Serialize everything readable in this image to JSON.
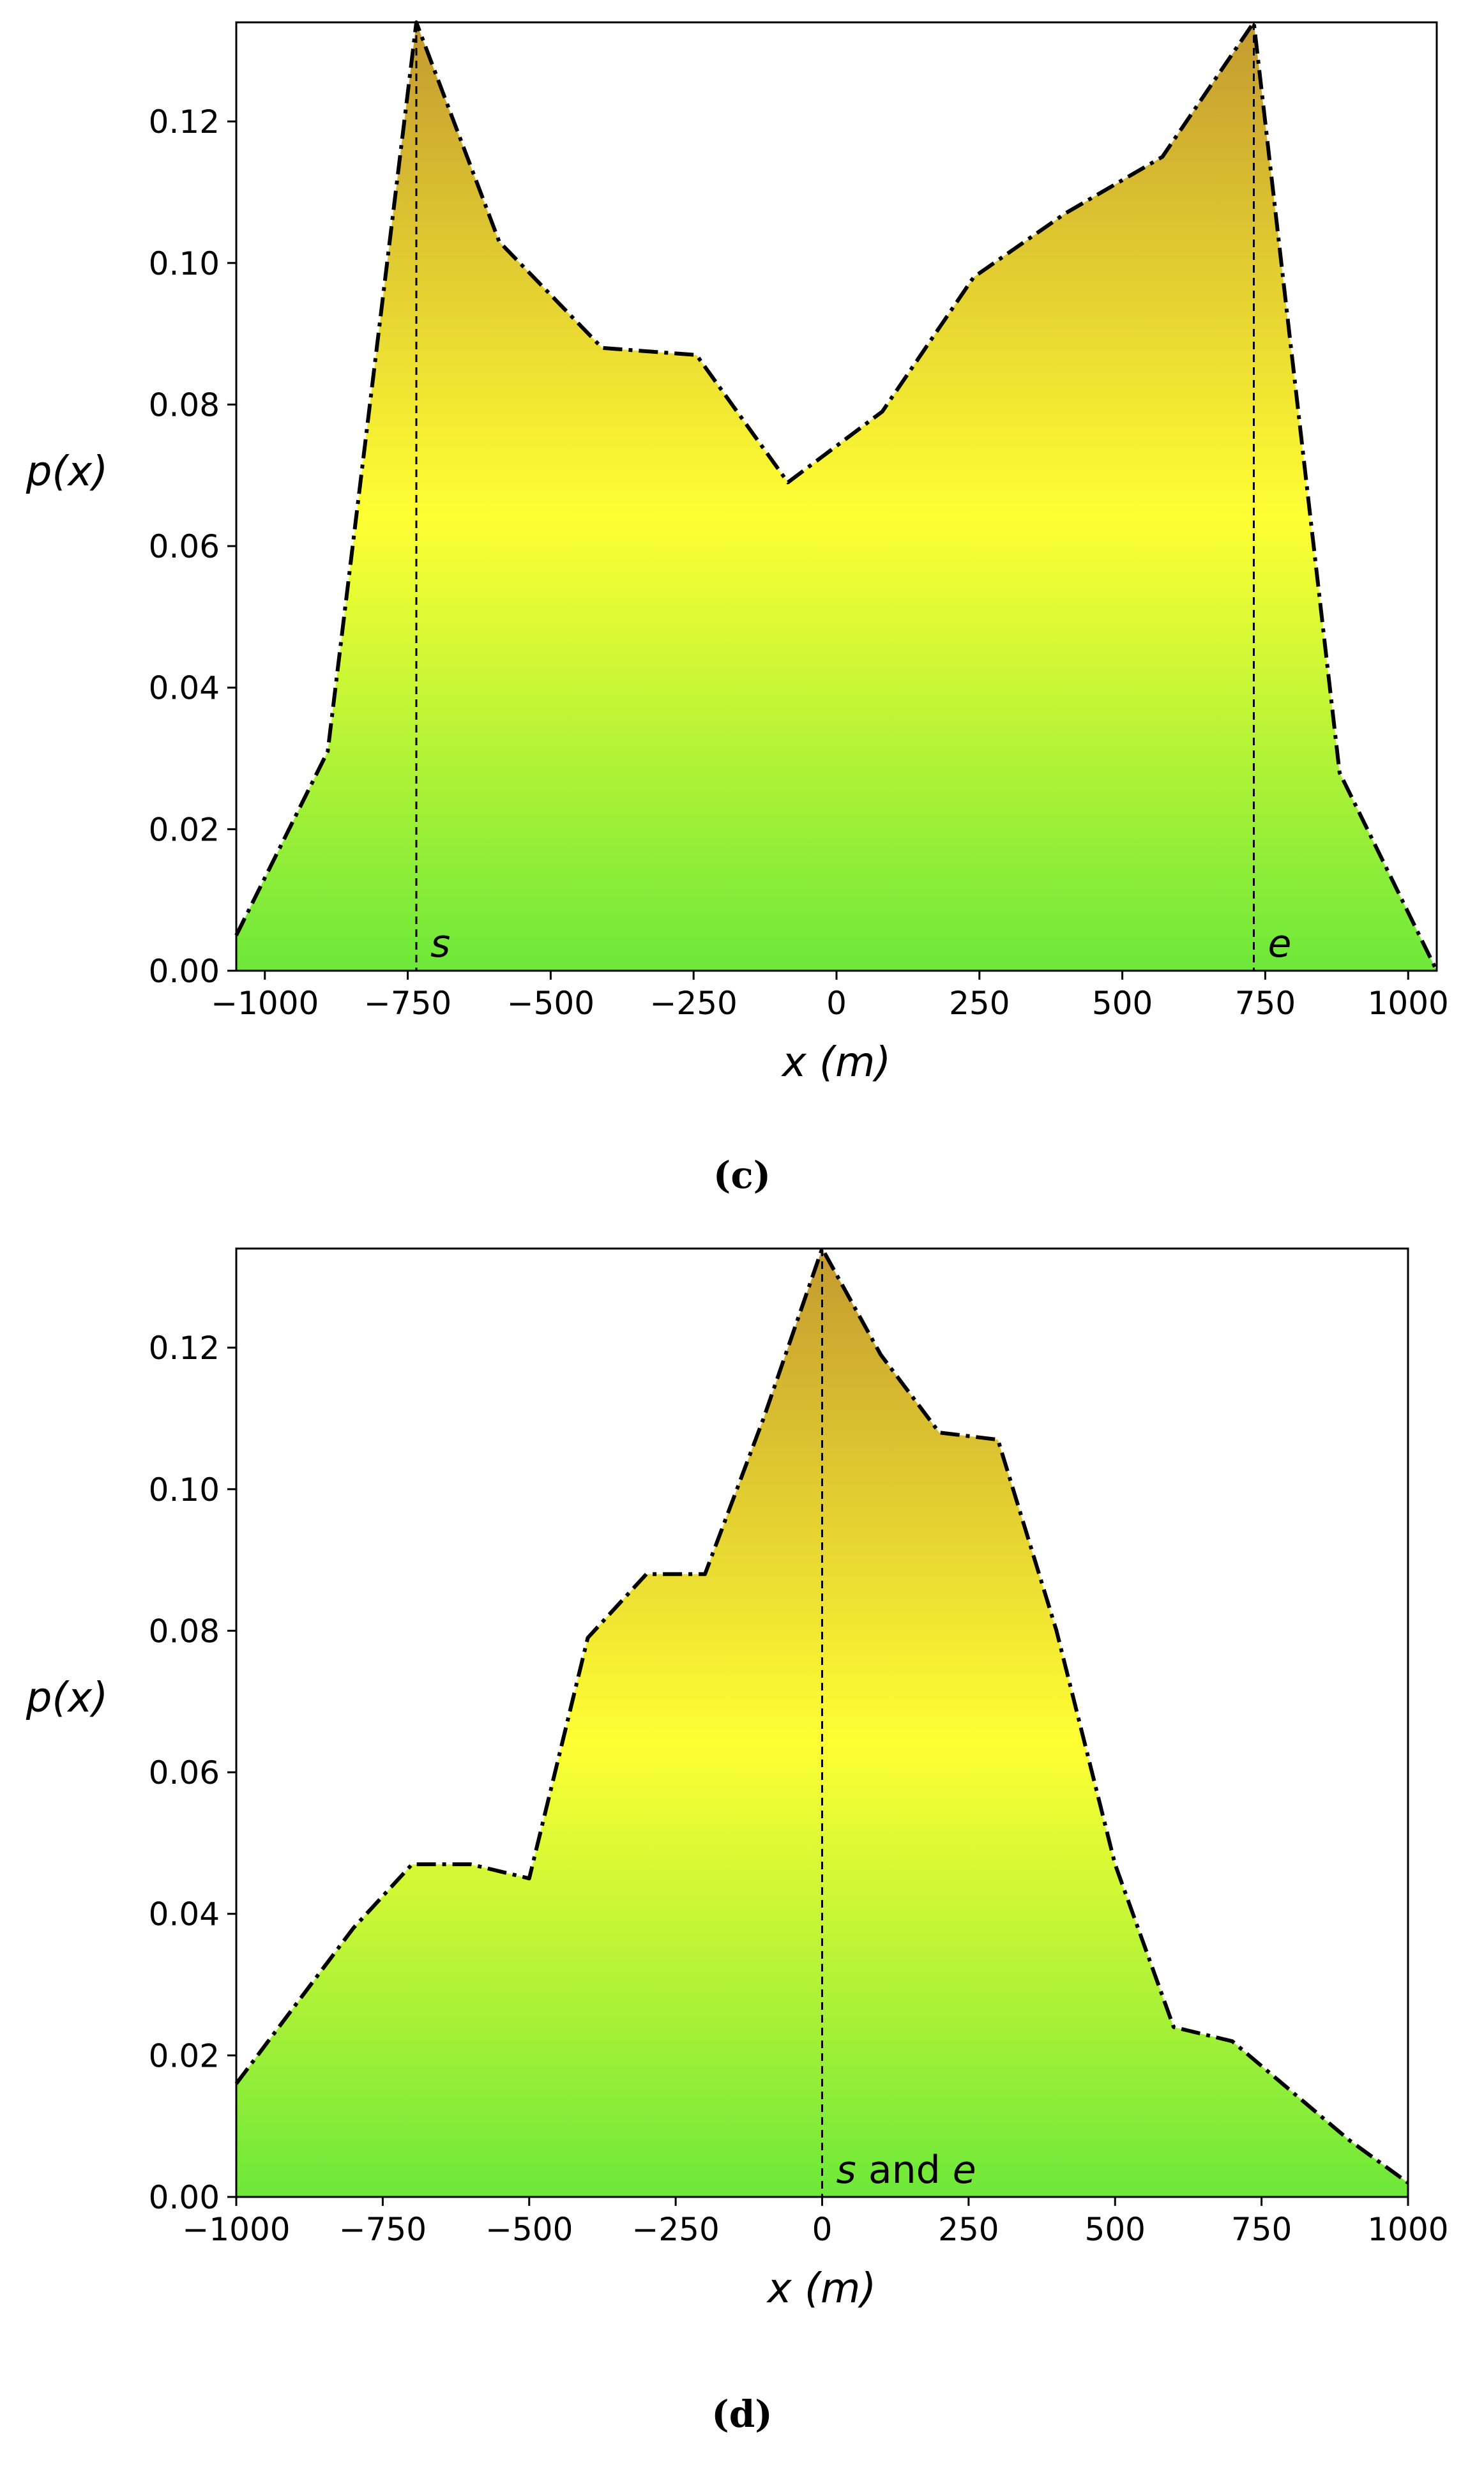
{
  "chart_data": [
    {
      "type": "area",
      "panel_label": "(c)",
      "xlabel": "x (m)",
      "ylabel": "p(x)",
      "xlim": [
        -1050,
        1050
      ],
      "ylim": [
        0,
        0.134
      ],
      "xticks": [
        -1000,
        -750,
        -500,
        -250,
        0,
        250,
        500,
        750,
        1000
      ],
      "xtick_labels": [
        "−1000",
        "−750",
        "−500",
        "−250",
        "0",
        "250",
        "500",
        "750",
        "1000"
      ],
      "yticks": [
        0.0,
        0.02,
        0.04,
        0.06,
        0.08,
        0.1,
        0.12
      ],
      "ytick_labels": [
        "0.00",
        "0.02",
        "0.04",
        "0.06",
        "0.08",
        "0.10",
        "0.12"
      ],
      "grid": false,
      "fill_gradient": [
        "#6de839",
        "#ffff33",
        "#c49a2f"
      ],
      "line_style": "dash-dot",
      "x": [
        -1050,
        -890,
        -735,
        -590,
        -410,
        -245,
        -85,
        80,
        240,
        400,
        570,
        730,
        880,
        1050
      ],
      "y": [
        0.005,
        0.031,
        0.134,
        0.103,
        0.088,
        0.087,
        0.069,
        0.079,
        0.098,
        0.107,
        0.115,
        0.134,
        0.028,
        0.0
      ],
      "markers": [
        {
          "x": -735,
          "label": "s"
        },
        {
          "x": 730,
          "label": "e"
        }
      ]
    },
    {
      "type": "area",
      "panel_label": "(d)",
      "xlabel": "x (m)",
      "ylabel": "p(x)",
      "xlim": [
        -1000,
        1000
      ],
      "ylim": [
        0,
        0.134
      ],
      "xticks": [
        -1000,
        -750,
        -500,
        -250,
        0,
        250,
        500,
        750,
        1000
      ],
      "xtick_labels": [
        "−1000",
        "−750",
        "−500",
        "−250",
        "0",
        "250",
        "500",
        "750",
        "1000"
      ],
      "yticks": [
        0.0,
        0.02,
        0.04,
        0.06,
        0.08,
        0.1,
        0.12
      ],
      "ytick_labels": [
        "0.00",
        "0.02",
        "0.04",
        "0.06",
        "0.08",
        "0.10",
        "0.12"
      ],
      "grid": false,
      "fill_gradient": [
        "#6de839",
        "#ffff33",
        "#c49a2f"
      ],
      "line_style": "dash-dot",
      "x": [
        -1000,
        -900,
        -800,
        -700,
        -600,
        -500,
        -400,
        -300,
        -200,
        -100,
        0,
        100,
        200,
        300,
        400,
        500,
        600,
        700,
        800,
        900,
        1000
      ],
      "y": [
        0.016,
        0.027,
        0.038,
        0.047,
        0.047,
        0.045,
        0.079,
        0.088,
        0.088,
        0.11,
        0.134,
        0.119,
        0.108,
        0.107,
        0.08,
        0.047,
        0.024,
        0.022,
        0.015,
        0.008,
        0.002
      ],
      "markers": [
        {
          "x": 0,
          "label": "s and e"
        }
      ]
    }
  ]
}
